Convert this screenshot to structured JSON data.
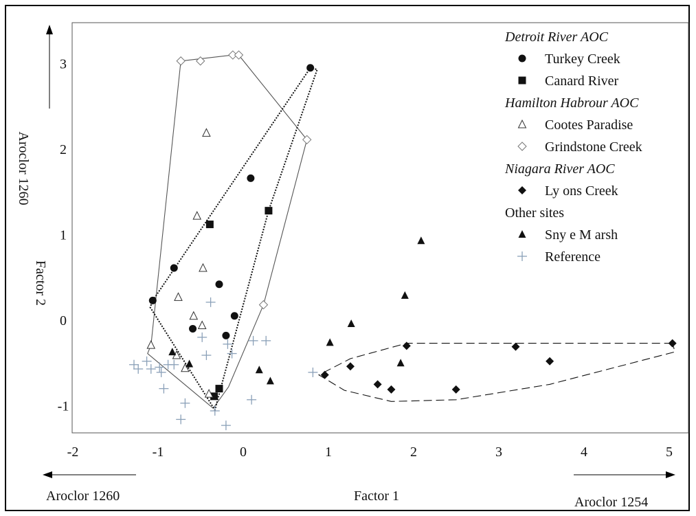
{
  "chart_data": {
    "type": "scatter",
    "title": "",
    "xlabel": "Factor 1",
    "ylabel": "Factor 2",
    "xlim": [
      -2.2,
      5.1
    ],
    "ylim": [
      -1.5,
      3.5
    ],
    "x_ticks": [
      "-2",
      "-1",
      "0",
      "1",
      "2",
      "3",
      "4",
      "5"
    ],
    "y_ticks": [
      "-1",
      "0",
      "1",
      "2",
      "3"
    ],
    "x_annotation_left": "Aroclor 1260",
    "x_annotation_right": "Aroclor 1254",
    "y_annotation": "Aroclor 1260",
    "legend_position": "top-right",
    "legend": [
      {
        "kind": "header",
        "label": "Detroit River AOC"
      },
      {
        "kind": "series",
        "label": "Turkey Creek",
        "marker": "circle-filled"
      },
      {
        "kind": "series",
        "label": "Canard River",
        "marker": "square-filled"
      },
      {
        "kind": "header",
        "label": "Hamilton Habrour AOC"
      },
      {
        "kind": "series",
        "label": "Cootes Paradise",
        "marker": "triangle-open"
      },
      {
        "kind": "series",
        "label": "Grindstone Creek",
        "marker": "diamond-open"
      },
      {
        "kind": "header",
        "label": "Niagara River AOC"
      },
      {
        "kind": "series",
        "label": "Ly ons Creek",
        "marker": "diamond-filled"
      },
      {
        "kind": "plain",
        "label": "Other sites"
      },
      {
        "kind": "series",
        "label": "Sny e M arsh",
        "marker": "triangle-filled"
      },
      {
        "kind": "series",
        "label": "Reference",
        "marker": "plus"
      }
    ],
    "series": [
      {
        "name": "Turkey Creek",
        "marker": "circle-filled",
        "points": [
          [
            -1.03,
            0.23
          ],
          [
            -0.78,
            0.61
          ],
          [
            0.82,
            2.95
          ],
          [
            0.12,
            1.66
          ],
          [
            -0.25,
            0.42
          ],
          [
            -0.07,
            0.05
          ],
          [
            -0.56,
            -0.1
          ],
          [
            -0.17,
            -0.18
          ]
        ]
      },
      {
        "name": "Canard River",
        "marker": "square-filled",
        "points": [
          [
            -0.36,
            1.12
          ],
          [
            0.33,
            1.28
          ],
          [
            -0.25,
            -0.8
          ],
          [
            -0.31,
            -0.89
          ]
        ]
      },
      {
        "name": "Cootes Paradise",
        "marker": "triangle-open",
        "points": [
          [
            -0.4,
            2.19
          ],
          [
            -0.51,
            1.22
          ],
          [
            -0.44,
            0.61
          ],
          [
            -0.73,
            0.27
          ],
          [
            -0.55,
            0.05
          ],
          [
            -0.45,
            -0.06
          ],
          [
            -1.05,
            -0.29
          ],
          [
            -0.75,
            -0.41
          ],
          [
            -0.65,
            -0.56
          ],
          [
            -0.37,
            -0.86
          ]
        ]
      },
      {
        "name": "Grindstone Creek",
        "marker": "diamond-open",
        "points": [
          [
            -0.7,
            3.03
          ],
          [
            -0.47,
            3.03
          ],
          [
            -0.09,
            3.1
          ],
          [
            -0.02,
            3.1
          ],
          [
            0.78,
            2.11
          ],
          [
            0.27,
            0.18
          ]
        ]
      },
      {
        "name": "Ly ons Creek",
        "marker": "diamond-filled",
        "points": [
          [
            5.07,
            -0.27
          ],
          [
            3.23,
            -0.31
          ],
          [
            3.63,
            -0.48
          ],
          [
            1.95,
            -0.3
          ],
          [
            1.29,
            -0.54
          ],
          [
            0.99,
            -0.64
          ],
          [
            1.61,
            -0.75
          ],
          [
            1.77,
            -0.81
          ],
          [
            2.53,
            -0.81
          ]
        ]
      },
      {
        "name": "Sny e M arsh",
        "marker": "triangle-filled",
        "points": [
          [
            2.12,
            0.93
          ],
          [
            1.93,
            0.29
          ],
          [
            1.3,
            -0.04
          ],
          [
            1.05,
            -0.26
          ],
          [
            1.88,
            -0.5
          ],
          [
            0.22,
            -0.58
          ],
          [
            0.35,
            -0.71
          ],
          [
            -0.8,
            -0.37
          ],
          [
            -0.6,
            -0.51
          ]
        ]
      },
      {
        "name": "Reference",
        "marker": "plus",
        "points": [
          [
            -1.25,
            -0.52
          ],
          [
            -1.2,
            -0.57
          ],
          [
            -1.1,
            -0.48
          ],
          [
            -1.05,
            -0.57
          ],
          [
            -0.95,
            -0.55
          ],
          [
            -0.93,
            -0.61
          ],
          [
            -0.85,
            -0.52
          ],
          [
            -0.78,
            -0.52
          ],
          [
            -0.9,
            -0.8
          ],
          [
            -0.65,
            -0.97
          ],
          [
            -0.7,
            -1.16
          ],
          [
            -0.3,
            -1.06
          ],
          [
            -0.17,
            -1.23
          ],
          [
            0.13,
            -0.93
          ],
          [
            -0.35,
            0.21
          ],
          [
            -0.45,
            -0.2
          ],
          [
            -0.4,
            -0.41
          ],
          [
            -0.15,
            -0.28
          ],
          [
            -0.1,
            -0.39
          ],
          [
            0.15,
            -0.24
          ],
          [
            0.3,
            -0.24
          ],
          [
            0.85,
            -0.61
          ]
        ]
      }
    ],
    "hulls": [
      {
        "group": "Hamilton Harbour AOC",
        "style": "solid",
        "points": [
          [
            -0.7,
            3.03
          ],
          [
            -0.09,
            3.1
          ],
          [
            -0.02,
            3.1
          ],
          [
            0.78,
            2.11
          ],
          [
            0.27,
            0.18
          ],
          [
            -0.14,
            -0.78
          ],
          [
            -0.32,
            -1.03
          ],
          [
            -1.09,
            -0.39
          ],
          [
            -1.05,
            -0.29
          ]
        ]
      },
      {
        "group": "Detroit River AOC",
        "style": "dotted",
        "points": [
          [
            -1.03,
            0.23
          ],
          [
            0.82,
            2.95
          ],
          [
            0.9,
            2.93
          ],
          [
            0.33,
            1.28
          ],
          [
            -0.3,
            -1.05
          ],
          [
            -1.06,
            0.15
          ]
        ]
      },
      {
        "group": "Niagara River AOC",
        "style": "dashed",
        "points": [
          [
            5.07,
            -0.27
          ],
          [
            3.23,
            -0.27
          ],
          [
            1.95,
            -0.27
          ],
          [
            1.29,
            -0.45
          ],
          [
            0.92,
            -0.64
          ],
          [
            1.22,
            -0.82
          ],
          [
            1.77,
            -0.95
          ],
          [
            2.53,
            -0.93
          ],
          [
            3.63,
            -0.75
          ],
          [
            5.1,
            -0.37
          ]
        ]
      }
    ]
  }
}
